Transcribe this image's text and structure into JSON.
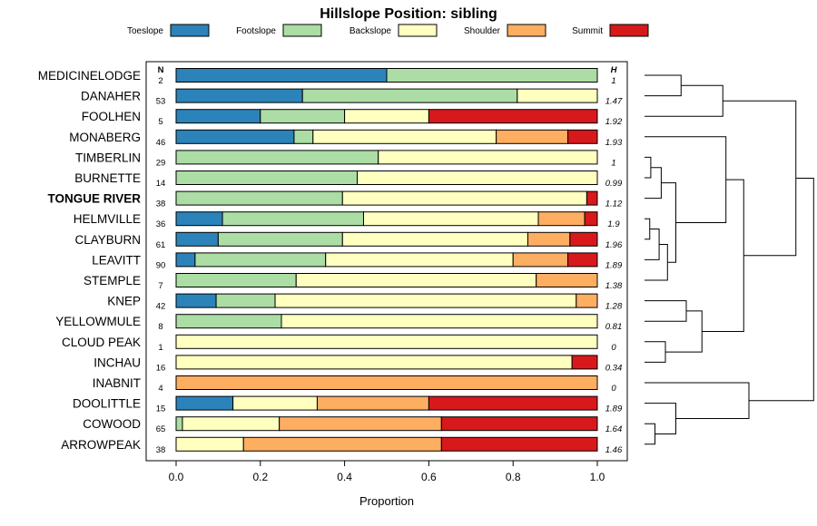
{
  "chart_data": {
    "type": "bar",
    "orientation": "horizontal",
    "stacked": true,
    "title": "Hillslope Position: sibling",
    "xlabel": "Proportion",
    "ylabel": "",
    "xlim": [
      0,
      1
    ],
    "xticks": [
      "0.0",
      "0.2",
      "0.4",
      "0.6",
      "0.8",
      "1.0"
    ],
    "left_column_header": "N",
    "right_column_header": "H",
    "highlight": "TONGUE RIVER",
    "legend_position": "top",
    "series": [
      {
        "name": "Toeslope",
        "color": "#2b83ba"
      },
      {
        "name": "Footslope",
        "color": "#abdda4"
      },
      {
        "name": "Backslope",
        "color": "#ffffbf"
      },
      {
        "name": "Shoulder",
        "color": "#fdae61"
      },
      {
        "name": "Summit",
        "color": "#d7191c"
      }
    ],
    "categories": [
      "MEDICINELODGE",
      "DANAHER",
      "FOOLHEN",
      "MONABERG",
      "TIMBERLIN",
      "BURNETTE",
      "TONGUE RIVER",
      "HELMVILLE",
      "CLAYBURN",
      "LEAVITT",
      "STEMPLE",
      "KNEP",
      "YELLOWMULE",
      "CLOUD PEAK",
      "INCHAU",
      "INABNIT",
      "DOOLITTLE",
      "COWOOD",
      "ARROWPEAK"
    ],
    "n": [
      "2",
      "53",
      "5",
      "46",
      "29",
      "14",
      "38",
      "36",
      "61",
      "90",
      "7",
      "42",
      "8",
      "1",
      "16",
      "4",
      "15",
      "65",
      "38"
    ],
    "h": [
      "1",
      "1.47",
      "1.92",
      "1.93",
      "1",
      "0.99",
      "1.12",
      "1.9",
      "1.96",
      "1.89",
      "1.38",
      "1.28",
      "0.81",
      "0",
      "0.34",
      "0",
      "1.89",
      "1.64",
      "1.46"
    ],
    "values": [
      [
        0.5,
        0.5,
        0.0,
        0.0,
        0.0
      ],
      [
        0.3,
        0.51,
        0.19,
        0.0,
        0.0
      ],
      [
        0.2,
        0.2,
        0.2,
        0.0,
        0.4
      ],
      [
        0.28,
        0.045,
        0.435,
        0.17,
        0.07
      ],
      [
        0.0,
        0.48,
        0.52,
        0.0,
        0.0
      ],
      [
        0.0,
        0.43,
        0.57,
        0.0,
        0.0
      ],
      [
        0.0,
        0.395,
        0.58,
        0.0,
        0.025
      ],
      [
        0.11,
        0.335,
        0.415,
        0.11,
        0.03
      ],
      [
        0.1,
        0.295,
        0.44,
        0.1,
        0.065
      ],
      [
        0.045,
        0.31,
        0.445,
        0.13,
        0.07
      ],
      [
        0.0,
        0.285,
        0.57,
        0.145,
        0.0
      ],
      [
        0.095,
        0.14,
        0.715,
        0.05,
        0.0
      ],
      [
        0.0,
        0.25,
        0.75,
        0.0,
        0.0
      ],
      [
        0.0,
        0.0,
        1.0,
        0.0,
        0.0
      ],
      [
        0.0,
        0.0,
        0.94,
        0.0,
        0.06
      ],
      [
        0.0,
        0.0,
        0.0,
        1.0,
        0.0
      ],
      [
        0.135,
        0.0,
        0.2,
        0.265,
        0.4
      ],
      [
        0.0,
        0.015,
        0.23,
        0.385,
        0.37
      ],
      [
        0.0,
        0.0,
        0.16,
        0.47,
        0.37
      ]
    ],
    "dendrogram": {
      "description": "hierarchical clustering of series by proportion profile; leaves in category order",
      "merges": [
        [
          [
            0
          ],
          [
            1
          ],
          0.35
        ],
        [
          [
            0,
            1
          ],
          [
            2
          ],
          0.75
        ],
        [
          [
            4
          ],
          [
            5
          ],
          0.06
        ],
        [
          [
            4,
            5
          ],
          [
            6
          ],
          0.16
        ],
        [
          [
            7
          ],
          [
            8
          ],
          0.05
        ],
        [
          [
            7,
            8
          ],
          [
            9
          ],
          0.14
        ],
        [
          [
            7,
            8,
            9
          ],
          [
            10
          ],
          0.22
        ],
        [
          [
            11
          ],
          [
            12
          ],
          0.4
        ],
        [
          [
            13
          ],
          [
            14
          ],
          0.2
        ],
        [
          [
            11,
            12
          ],
          [
            13,
            14
          ],
          0.55
        ],
        [
          [
            4,
            5,
            6
          ],
          [
            7,
            8,
            9,
            10
          ],
          0.3
        ],
        [
          [
            3
          ],
          [
            4,
            5,
            6,
            7,
            8,
            9,
            10
          ],
          0.78
        ],
        [
          [
            3,
            4,
            5,
            6,
            7,
            8,
            9,
            10
          ],
          [
            11,
            12,
            13,
            14
          ],
          0.95
        ],
        [
          [
            0,
            1,
            2
          ],
          [
            3,
            4,
            5,
            6,
            7,
            8,
            9,
            10,
            11,
            12,
            13,
            14
          ],
          1.45
        ],
        [
          [
            17
          ],
          [
            18
          ],
          0.1
        ],
        [
          [
            16
          ],
          [
            17,
            18
          ],
          0.3
        ],
        [
          [
            15
          ],
          [
            16,
            17,
            18
          ],
          1.0
        ],
        [
          [
            0,
            1,
            2,
            3,
            4,
            5,
            6,
            7,
            8,
            9,
            10,
            11,
            12,
            13,
            14
          ],
          [
            15,
            16,
            17,
            18
          ],
          1.62
        ]
      ]
    }
  }
}
